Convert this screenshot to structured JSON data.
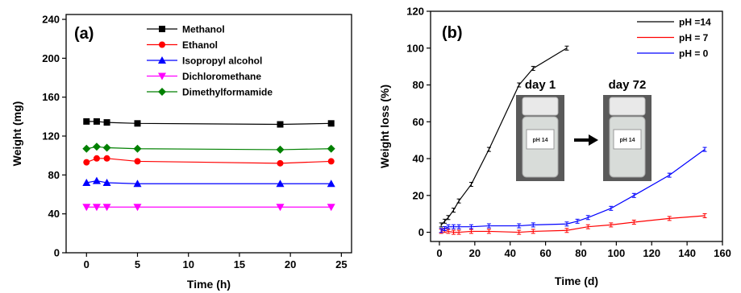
{
  "chart_data": [
    {
      "type": "line",
      "panel_label": "(a)",
      "xlabel": "Time (h)",
      "ylabel": "Weight (mg)",
      "xlim": [
        -2,
        26
      ],
      "ylim": [
        0,
        245
      ],
      "xticks": [
        0,
        5,
        10,
        15,
        20,
        25
      ],
      "yticks": [
        0,
        40,
        80,
        120,
        160,
        200,
        240
      ],
      "legend_position": "top-right",
      "series": [
        {
          "name": "Methanol",
          "color": "#000000",
          "marker": "square",
          "x": [
            0,
            1,
            2,
            5,
            19,
            24
          ],
          "y": [
            135,
            135,
            134,
            133,
            132,
            133
          ]
        },
        {
          "name": "Ethanol",
          "color": "#ff0000",
          "marker": "circle",
          "x": [
            0,
            1,
            2,
            5,
            19,
            24
          ],
          "y": [
            93,
            97,
            97,
            94,
            92,
            94
          ]
        },
        {
          "name": "Isopropyl alcohol",
          "color": "#0000ff",
          "marker": "triangle-up",
          "x": [
            0,
            1,
            2,
            5,
            19,
            24
          ],
          "y": [
            72,
            74,
            72,
            71,
            71,
            71
          ]
        },
        {
          "name": "Dichloromethane",
          "color": "#ff00ff",
          "marker": "triangle-down",
          "x": [
            0,
            1,
            2,
            5,
            19,
            24
          ],
          "y": [
            47,
            47,
            47,
            47,
            47,
            47
          ]
        },
        {
          "name": "Dimethylformamide",
          "color": "#008000",
          "marker": "diamond",
          "x": [
            0,
            1,
            2,
            5,
            19,
            24
          ],
          "y": [
            107,
            109,
            108,
            107,
            106,
            107
          ]
        }
      ]
    },
    {
      "type": "line",
      "panel_label": "(b)",
      "xlabel": "Time (d)",
      "ylabel": "Weight loss (%)",
      "xlim": [
        -5,
        160
      ],
      "ylim": [
        -5,
        120
      ],
      "xticks": [
        0,
        20,
        40,
        60,
        80,
        100,
        120,
        140,
        160
      ],
      "yticks": [
        0,
        20,
        40,
        60,
        80,
        100,
        120
      ],
      "legend_position": "top-right",
      "series": [
        {
          "name": "pH =14",
          "color": "#000000",
          "x": [
            1,
            3,
            5,
            8,
            11,
            18,
            28,
            45,
            53,
            72
          ],
          "y": [
            4,
            6,
            8,
            12,
            17,
            26,
            45,
            80,
            89,
            100
          ]
        },
        {
          "name": "pH = 7",
          "color": "#ff0000",
          "x": [
            1,
            3,
            5,
            8,
            11,
            18,
            28,
            45,
            53,
            72,
            84,
            97,
            110,
            130,
            150
          ],
          "y": [
            0.5,
            1,
            0.5,
            0,
            0,
            0.5,
            0.5,
            0,
            0.5,
            1,
            3,
            4,
            5.5,
            7.5,
            9
          ]
        },
        {
          "name": "pH = 0",
          "color": "#0000ff",
          "x": [
            1,
            3,
            5,
            8,
            11,
            18,
            28,
            45,
            53,
            72,
            78,
            84,
            97,
            110,
            130,
            150
          ],
          "y": [
            1,
            2,
            3,
            3,
            3,
            3,
            3.5,
            3.5,
            4,
            4.5,
            6,
            8,
            13,
            20,
            31,
            45
          ]
        }
      ],
      "inset_photos": [
        {
          "label": "day 1",
          "jar_label": "pH 14"
        },
        {
          "label": "day 72",
          "jar_label": "pH 14"
        }
      ]
    }
  ]
}
